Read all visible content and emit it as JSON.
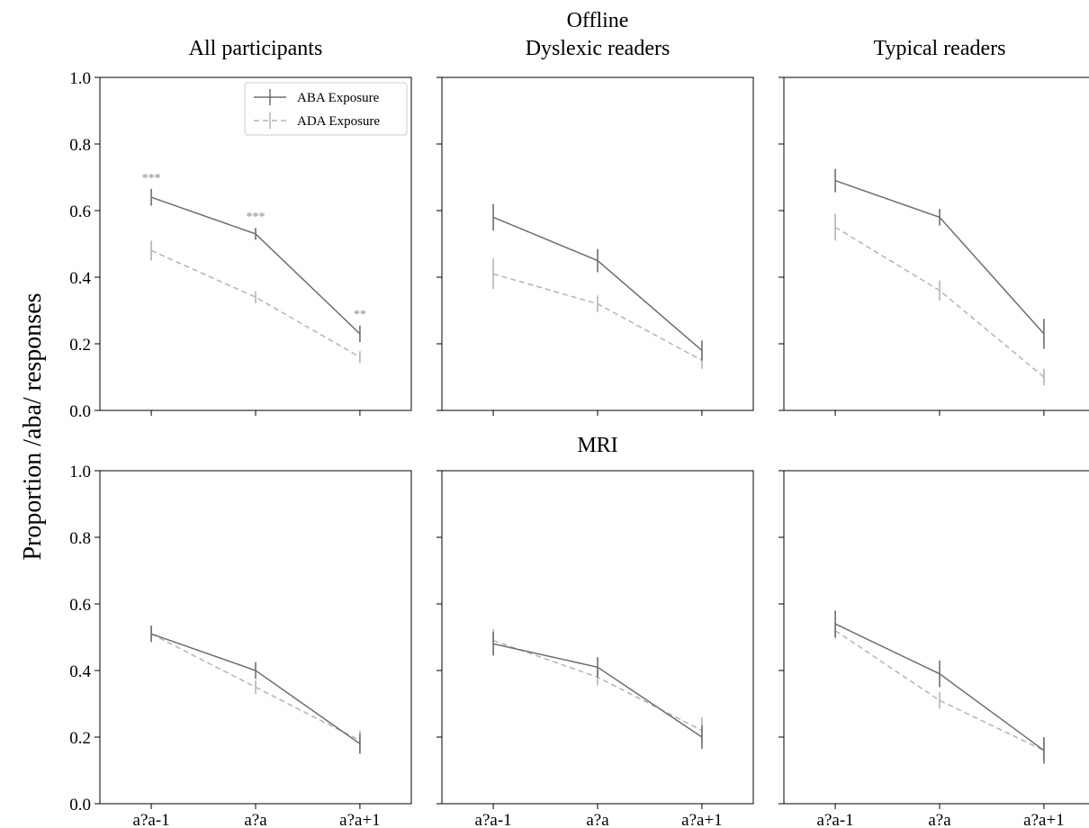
{
  "chart_data": {
    "type": "line",
    "ylabel": "Proportion /aba/ responses",
    "ylim": [
      0,
      1.0
    ],
    "yticks": [
      0.0,
      0.2,
      0.4,
      0.6,
      0.8,
      1.0
    ],
    "ytick_labels": [
      "0.0",
      "0.2",
      "0.4",
      "0.6",
      "0.8",
      "1.0"
    ],
    "categories": [
      "a?a-1",
      "a?a",
      "a?a+1"
    ],
    "row_titles": [
      "Offline",
      "MRI"
    ],
    "column_titles": [
      "All participants",
      "Dyslexic readers",
      "Typical readers"
    ],
    "legend": {
      "placement": "top-right",
      "entries": [
        {
          "name": "ABA Exposure",
          "color": "#6e6e6e",
          "style": "solid"
        },
        {
          "name": "ADA Exposure",
          "color": "#b4b4b4",
          "style": "dashed"
        }
      ]
    },
    "grid": false,
    "panels": [
      {
        "row": "Offline",
        "column": "All participants",
        "series": [
          {
            "name": "ABA Exposure",
            "values": [
              0.64,
              0.53,
              0.23
            ],
            "errors": [
              0.025,
              0.018,
              0.025
            ]
          },
          {
            "name": "ADA Exposure",
            "values": [
              0.48,
              0.34,
              0.16
            ],
            "errors": [
              0.03,
              0.018,
              0.018
            ]
          }
        ],
        "annotations": [
          "***",
          "***",
          "**"
        ]
      },
      {
        "row": "Offline",
        "column": "Dyslexic readers",
        "series": [
          {
            "name": "ABA Exposure",
            "values": [
              0.58,
              0.45,
              0.18
            ],
            "errors": [
              0.04,
              0.035,
              0.03
            ]
          },
          {
            "name": "ADA Exposure",
            "values": [
              0.41,
              0.32,
              0.15
            ],
            "errors": [
              0.045,
              0.025,
              0.025
            ]
          }
        ],
        "annotations": []
      },
      {
        "row": "Offline",
        "column": "Typical readers",
        "series": [
          {
            "name": "ABA Exposure",
            "values": [
              0.69,
              0.58,
              0.23
            ],
            "errors": [
              0.035,
              0.025,
              0.045
            ]
          },
          {
            "name": "ADA Exposure",
            "values": [
              0.55,
              0.36,
              0.1
            ],
            "errors": [
              0.04,
              0.03,
              0.025
            ]
          }
        ],
        "annotations": []
      },
      {
        "row": "MRI",
        "column": "All participants",
        "series": [
          {
            "name": "ABA Exposure",
            "values": [
              0.51,
              0.4,
              0.18
            ],
            "errors": [
              0.025,
              0.025,
              0.03
            ]
          },
          {
            "name": "ADA Exposure",
            "values": [
              0.51,
              0.35,
              0.19
            ],
            "errors": [
              0.02,
              0.02,
              0.03
            ]
          }
        ],
        "annotations": []
      },
      {
        "row": "MRI",
        "column": "Dyslexic readers",
        "series": [
          {
            "name": "ABA Exposure",
            "values": [
              0.48,
              0.41,
              0.2
            ],
            "errors": [
              0.035,
              0.03,
              0.035
            ]
          },
          {
            "name": "ADA Exposure",
            "values": [
              0.49,
              0.38,
              0.22
            ],
            "errors": [
              0.035,
              0.025,
              0.04
            ]
          }
        ],
        "annotations": []
      },
      {
        "row": "MRI",
        "column": "Typical readers",
        "series": [
          {
            "name": "ABA Exposure",
            "values": [
              0.54,
              0.39,
              0.16
            ],
            "errors": [
              0.04,
              0.04,
              0.04
            ]
          },
          {
            "name": "ADA Exposure",
            "values": [
              0.52,
              0.31,
              0.16
            ],
            "errors": [
              0.025,
              0.025,
              0.03
            ]
          }
        ],
        "annotations": []
      }
    ]
  }
}
